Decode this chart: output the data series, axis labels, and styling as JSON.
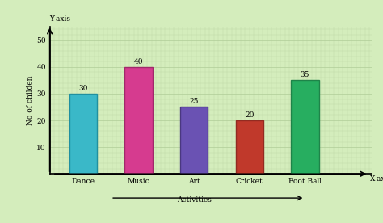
{
  "categories": [
    "Dance",
    "Music",
    "Art",
    "Cricket",
    "Foot Ball"
  ],
  "values": [
    30,
    40,
    25,
    20,
    35
  ],
  "bar_colors": [
    "#3ab8c8",
    "#d63b8f",
    "#6a52b3",
    "#c0392b",
    "#27ae60"
  ],
  "bar_edge_colors": [
    "#2090a0",
    "#a0296a",
    "#4a3880",
    "#922b21",
    "#1e8449"
  ],
  "value_labels": [
    "30",
    "40",
    "25",
    "20",
    "35"
  ],
  "ylabel": "No of childen",
  "ylim": [
    0,
    55
  ],
  "yticks": [
    10,
    20,
    30,
    40,
    50
  ],
  "background_color": "#d4edbc",
  "grid_color": "#b0cc98",
  "y_axis_label": "Y-axis",
  "x_axis_label": "X-axis",
  "activities_arrow_label": "Activities ⟶"
}
